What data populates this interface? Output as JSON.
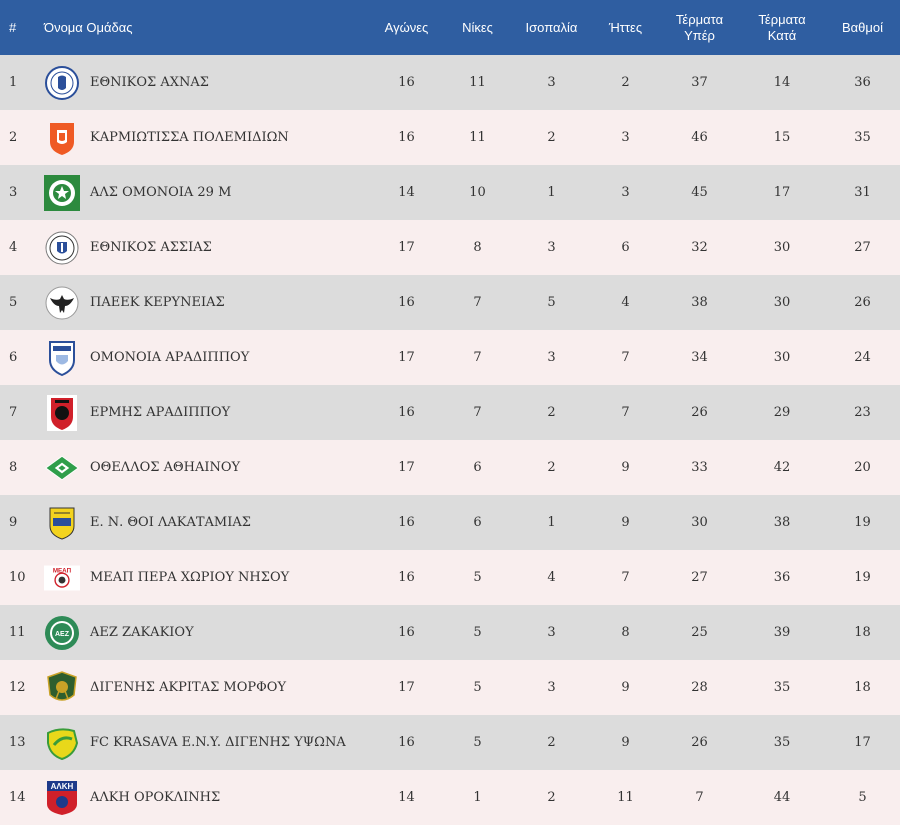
{
  "header": {
    "pos": "#",
    "team": "Όνομα Ομάδας",
    "played": "Αγώνες",
    "wins": "Νίκες",
    "draws": "Ισοπαλία",
    "losses": "Ήττες",
    "goals_for": "Τέρματα Υπέρ",
    "goals_against": "Τέρματα Κατά",
    "points": "Βαθμοί"
  },
  "colors": {
    "header_bg": "#2f5ea1",
    "row_odd": "#dcdcdc",
    "row_even": "#f9eeee"
  },
  "rows": [
    {
      "pos": "1",
      "name": "ΕΘΝΙΚΟΣ ΑΧΝΑΣ",
      "played": "16",
      "wins": "11",
      "draws": "3",
      "losses": "2",
      "gf": "37",
      "ga": "14",
      "pts": "36",
      "logo": "ethnikos-achnas-crest-icon"
    },
    {
      "pos": "2",
      "name": "ΚΑΡΜΙΩΤΙΣΣΑ ΠΟΛΕΜΙΔΙΩΝ",
      "played": "16",
      "wins": "11",
      "draws": "2",
      "losses": "3",
      "gf": "46",
      "ga": "15",
      "pts": "35",
      "logo": "karmiotissa-crest-icon"
    },
    {
      "pos": "3",
      "name": "ΑΛΣ ΟΜΟΝΟΙΑ 29 Μ",
      "played": "14",
      "wins": "10",
      "draws": "1",
      "losses": "3",
      "gf": "45",
      "ga": "17",
      "pts": "31",
      "logo": "omonoia-29m-crest-icon"
    },
    {
      "pos": "4",
      "name": "ΕΘΝΙΚΟΣ ΑΣΣΙΑΣ",
      "played": "17",
      "wins": "8",
      "draws": "3",
      "losses": "6",
      "gf": "32",
      "ga": "30",
      "pts": "27",
      "logo": "ethnikos-assias-crest-icon"
    },
    {
      "pos": "5",
      "name": "ΠΑΕΕΚ ΚΕΡΥΝΕΙΑΣ",
      "played": "16",
      "wins": "7",
      "draws": "5",
      "losses": "4",
      "gf": "38",
      "ga": "30",
      "pts": "26",
      "logo": "paeek-eagle-crest-icon"
    },
    {
      "pos": "6",
      "name": "ΟΜΟΝΟΙΑ ΑΡΑΔΙΠΠΟΥ",
      "played": "17",
      "wins": "7",
      "draws": "3",
      "losses": "7",
      "gf": "34",
      "ga": "30",
      "pts": "24",
      "logo": "omonoia-aradippou-shield-icon"
    },
    {
      "pos": "7",
      "name": "ΕΡΜΗΣ ΑΡΑΔΙΠΠΟΥ",
      "played": "16",
      "wins": "7",
      "draws": "2",
      "losses": "7",
      "gf": "26",
      "ga": "29",
      "pts": "23",
      "logo": "ermis-aradippou-crest-icon"
    },
    {
      "pos": "8",
      "name": "ΟΘΕΛΛΟΣ ΑΘΗΑΙΝΟΥ",
      "played": "17",
      "wins": "6",
      "draws": "2",
      "losses": "9",
      "gf": "33",
      "ga": "42",
      "pts": "20",
      "logo": "othellos-crest-icon"
    },
    {
      "pos": "9",
      "name": "Ε. Ν. ΘΟΙ ΛΑΚΑΤΑΜΙΑΣ",
      "played": "16",
      "wins": "6",
      "draws": "1",
      "losses": "9",
      "gf": "30",
      "ga": "38",
      "pts": "19",
      "logo": "thoi-lakatamias-shield-icon"
    },
    {
      "pos": "10",
      "name": "ΜΕΑΠ ΠΕΡΑ ΧΩΡΙΟΥ ΝΗΣΟΥ",
      "played": "16",
      "wins": "5",
      "draws": "4",
      "losses": "7",
      "gf": "27",
      "ga": "36",
      "pts": "19",
      "logo": "meap-crest-icon",
      "logo_text": "ΜΕΑΠ"
    },
    {
      "pos": "11",
      "name": "ΑΕΖ ΖΑΚΑΚΙΟΥ",
      "played": "16",
      "wins": "5",
      "draws": "3",
      "losses": "8",
      "gf": "25",
      "ga": "39",
      "pts": "18",
      "logo": "aez-zakakiou-crest-icon",
      "logo_text": "ΑΕΖ"
    },
    {
      "pos": "12",
      "name": "ΔΙΓΕΝΗΣ ΑΚΡΙΤΑΣ ΜΟΡΦΟΥ",
      "played": "17",
      "wins": "5",
      "draws": "3",
      "losses": "9",
      "gf": "28",
      "ga": "35",
      "pts": "18",
      "logo": "digenis-morfou-crest-icon"
    },
    {
      "pos": "13",
      "name": "FC KRASAVA E.N.Y. ΔΙΓΕΝΗΣ ΥΨΩΝΑ",
      "played": "16",
      "wins": "5",
      "draws": "2",
      "losses": "9",
      "gf": "26",
      "ga": "35",
      "pts": "17",
      "logo": "krasava-crest-icon"
    },
    {
      "pos": "14",
      "name": "ΑΛΚΗ ΟΡΟΚΛΙΝΗΣ",
      "played": "14",
      "wins": "1",
      "draws": "2",
      "losses": "11",
      "gf": "7",
      "ga": "44",
      "pts": "5",
      "logo": "alki-oroklinis-crest-icon",
      "logo_text": "ΑΛΚΗ"
    }
  ]
}
